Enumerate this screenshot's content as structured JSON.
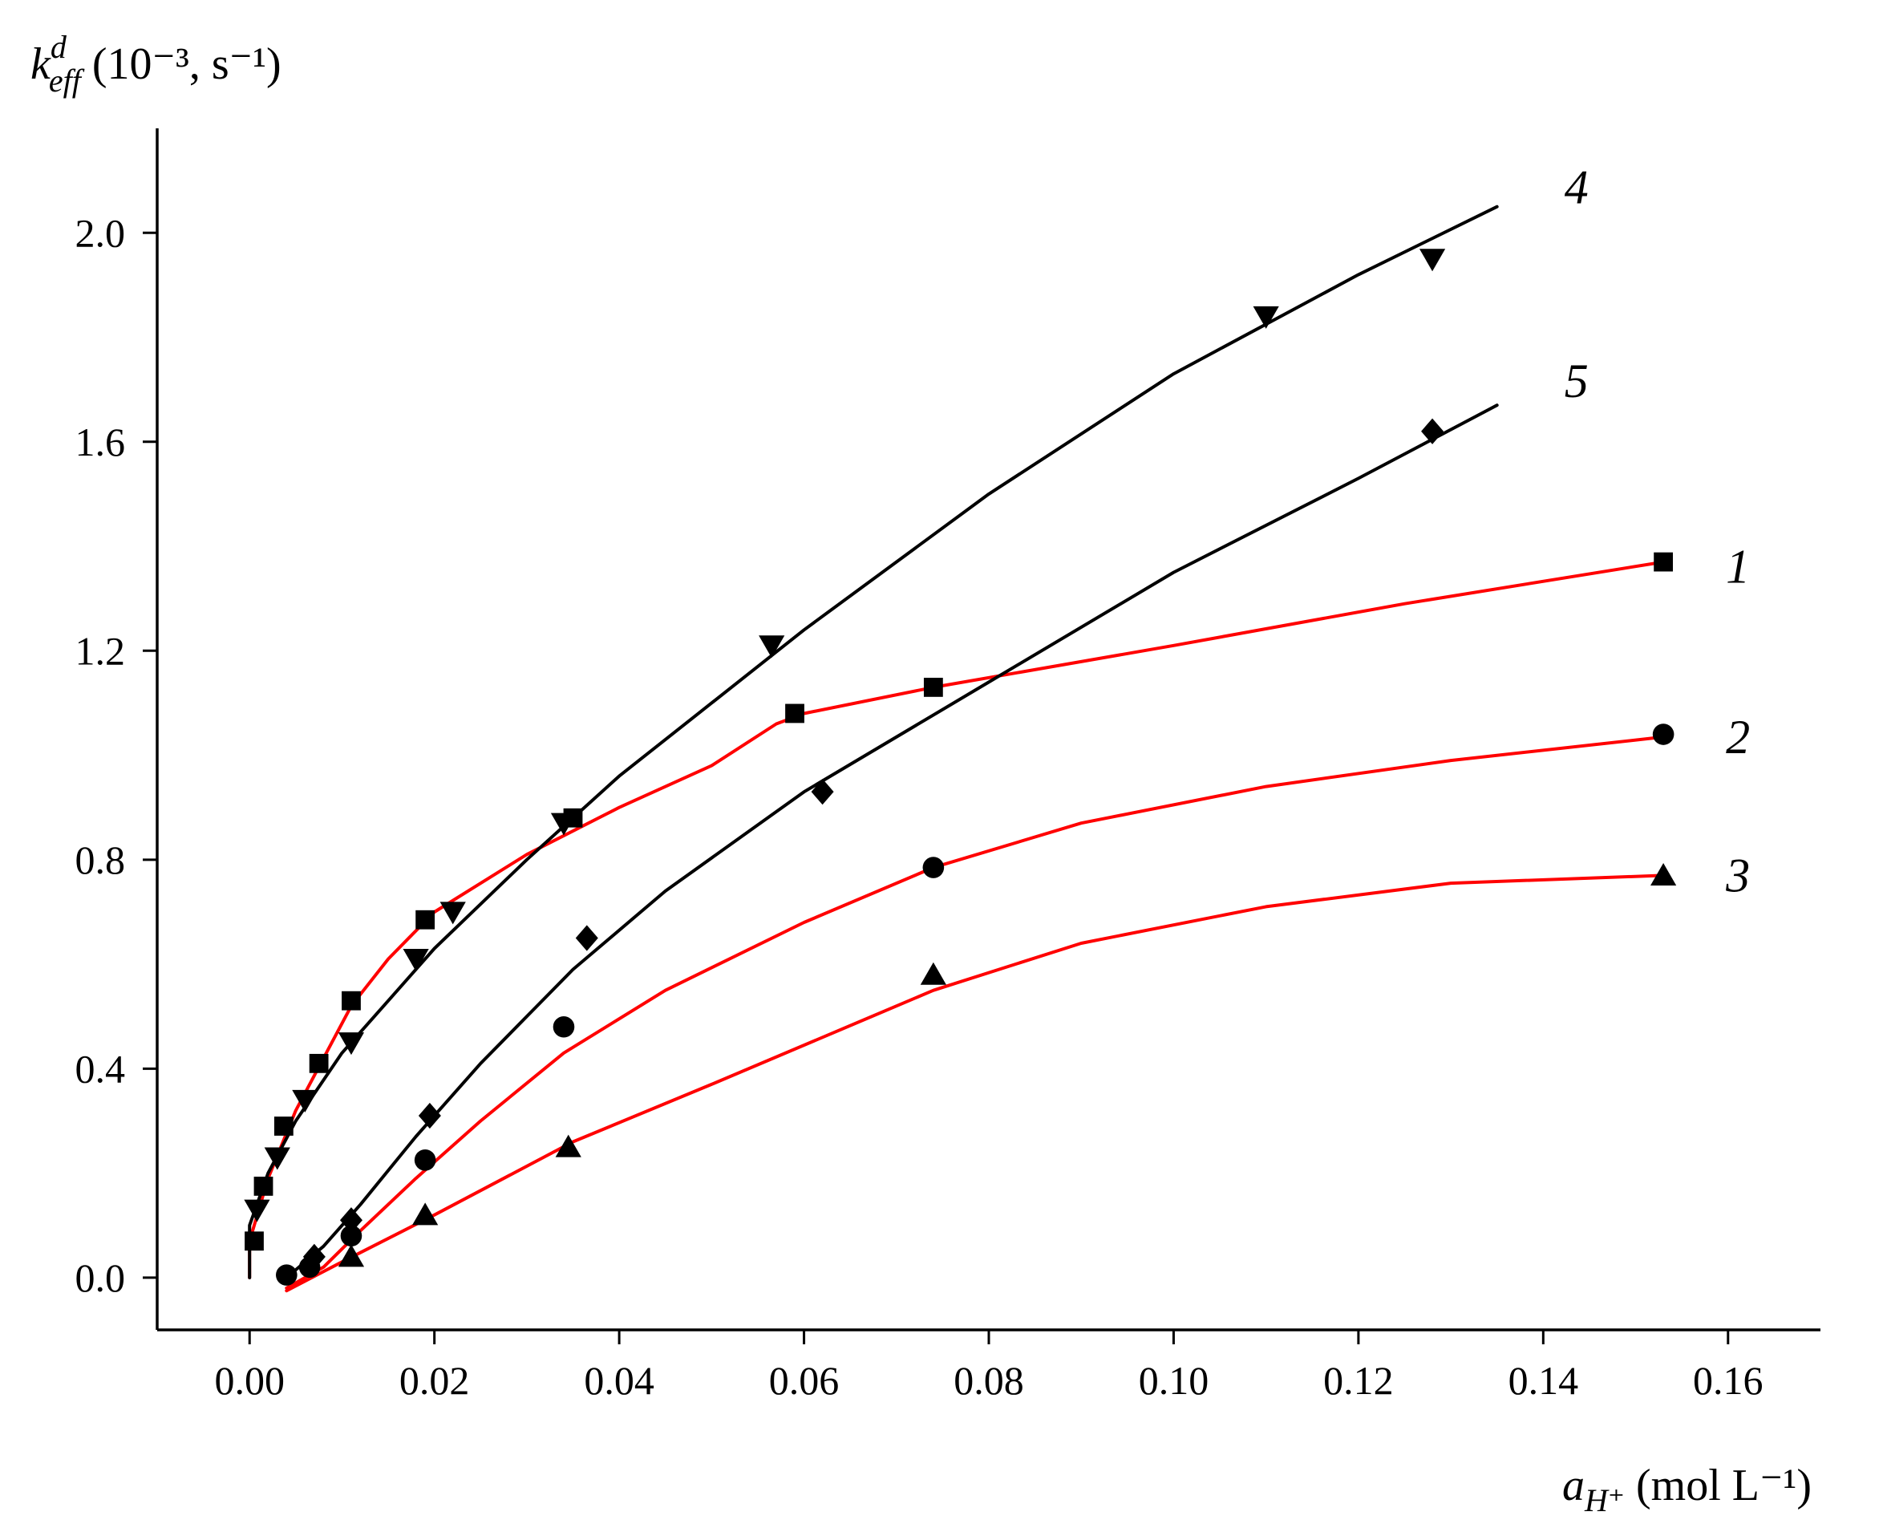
{
  "chart_data": {
    "type": "scatter",
    "xlim": [
      -0.01,
      0.17
    ],
    "ylim": [
      -0.1,
      2.2
    ],
    "x_ticks": [
      "0.00",
      "0.02",
      "0.04",
      "0.06",
      "0.08",
      "0.10",
      "0.12",
      "0.14",
      "0.16"
    ],
    "y_ticks": [
      "0.0",
      "0.4",
      "0.8",
      "1.2",
      "1.6",
      "2.0"
    ],
    "ylabel": {
      "symbol": "k",
      "superscript": "d",
      "subscript": "eff",
      "units": " (10⁻³, s⁻¹)"
    },
    "xlabel": {
      "symbol": "a",
      "subscript": "H⁺",
      "units": " (mol L⁻¹)"
    },
    "grid": false,
    "legend": "inline labels at curve ends",
    "series": [
      {
        "name": "1",
        "marker": "square",
        "color": "#ff0000",
        "points": [
          [
            0.0005,
            0.07
          ],
          [
            0.0015,
            0.175
          ],
          [
            0.0037,
            0.29
          ],
          [
            0.0075,
            0.41
          ],
          [
            0.011,
            0.53
          ],
          [
            0.019,
            0.685
          ],
          [
            0.035,
            0.88
          ],
          [
            0.059,
            1.08
          ],
          [
            0.074,
            1.13
          ],
          [
            0.153,
            1.37
          ]
        ],
        "curve": [
          [
            0.0,
            0.0
          ],
          [
            0.0,
            0.07
          ],
          [
            0.002,
            0.19
          ],
          [
            0.005,
            0.32
          ],
          [
            0.008,
            0.42
          ],
          [
            0.011,
            0.52
          ],
          [
            0.015,
            0.61
          ],
          [
            0.02,
            0.7
          ],
          [
            0.03,
            0.81
          ],
          [
            0.04,
            0.9
          ],
          [
            0.05,
            0.98
          ],
          [
            0.057,
            1.06
          ],
          [
            0.06,
            1.08
          ],
          [
            0.074,
            1.13
          ],
          [
            0.1,
            1.21
          ],
          [
            0.125,
            1.29
          ],
          [
            0.153,
            1.37
          ]
        ]
      },
      {
        "name": "2",
        "marker": "circle",
        "color": "#ff0000",
        "points": [
          [
            0.004,
            0.005
          ],
          [
            0.0065,
            0.02
          ],
          [
            0.011,
            0.08
          ],
          [
            0.019,
            0.225
          ],
          [
            0.034,
            0.48
          ],
          [
            0.074,
            0.785
          ],
          [
            0.153,
            1.04
          ]
        ],
        "curve": [
          [
            0.004,
            -0.02
          ],
          [
            0.008,
            0.02
          ],
          [
            0.012,
            0.09
          ],
          [
            0.018,
            0.19
          ],
          [
            0.025,
            0.3
          ],
          [
            0.034,
            0.43
          ],
          [
            0.045,
            0.55
          ],
          [
            0.06,
            0.68
          ],
          [
            0.074,
            0.785
          ],
          [
            0.09,
            0.87
          ],
          [
            0.11,
            0.94
          ],
          [
            0.13,
            0.99
          ],
          [
            0.153,
            1.035
          ]
        ]
      },
      {
        "name": "3",
        "marker": "triangle-up",
        "color": "#ff0000",
        "points": [
          [
            0.011,
            0.04
          ],
          [
            0.019,
            0.12
          ],
          [
            0.0345,
            0.25
          ],
          [
            0.074,
            0.58
          ],
          [
            0.153,
            0.77
          ]
        ],
        "curve": [
          [
            0.004,
            -0.025
          ],
          [
            0.01,
            0.03
          ],
          [
            0.02,
            0.12
          ],
          [
            0.035,
            0.26
          ],
          [
            0.05,
            0.37
          ],
          [
            0.074,
            0.55
          ],
          [
            0.09,
            0.64
          ],
          [
            0.11,
            0.71
          ],
          [
            0.13,
            0.755
          ],
          [
            0.153,
            0.77
          ]
        ]
      },
      {
        "name": "4",
        "marker": "triangle-down",
        "color": "#000000",
        "points": [
          [
            0.0008,
            0.13
          ],
          [
            0.003,
            0.23
          ],
          [
            0.006,
            0.34
          ],
          [
            0.011,
            0.45
          ],
          [
            0.018,
            0.61
          ],
          [
            0.022,
            0.7
          ],
          [
            0.034,
            0.87
          ],
          [
            0.0565,
            1.21
          ],
          [
            0.11,
            1.84
          ],
          [
            0.128,
            1.95
          ]
        ],
        "curve": [
          [
            0.0,
            0.0
          ],
          [
            0.0,
            0.1
          ],
          [
            0.002,
            0.2
          ],
          [
            0.005,
            0.3
          ],
          [
            0.01,
            0.43
          ],
          [
            0.015,
            0.53
          ],
          [
            0.02,
            0.63
          ],
          [
            0.03,
            0.8
          ],
          [
            0.04,
            0.96
          ],
          [
            0.06,
            1.24
          ],
          [
            0.08,
            1.5
          ],
          [
            0.1,
            1.73
          ],
          [
            0.12,
            1.92
          ],
          [
            0.135,
            2.05
          ]
        ]
      },
      {
        "name": "5",
        "marker": "diamond",
        "color": "#000000",
        "points": [
          [
            0.007,
            0.04
          ],
          [
            0.011,
            0.11
          ],
          [
            0.0195,
            0.31
          ],
          [
            0.0365,
            0.65
          ],
          [
            0.062,
            0.93
          ],
          [
            0.128,
            1.62
          ]
        ],
        "curve": [
          [
            0.004,
            0.0
          ],
          [
            0.008,
            0.06
          ],
          [
            0.012,
            0.14
          ],
          [
            0.018,
            0.27
          ],
          [
            0.025,
            0.41
          ],
          [
            0.035,
            0.59
          ],
          [
            0.045,
            0.74
          ],
          [
            0.06,
            0.93
          ],
          [
            0.08,
            1.14
          ],
          [
            0.1,
            1.35
          ],
          [
            0.12,
            1.53
          ],
          [
            0.135,
            1.67
          ]
        ]
      }
    ]
  }
}
